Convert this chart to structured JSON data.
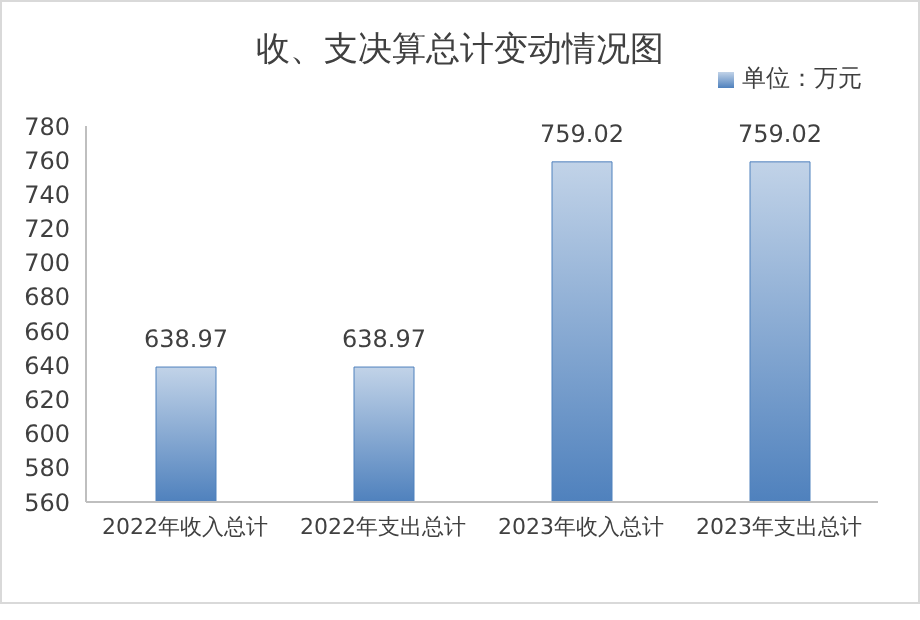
{
  "chart_data": {
    "type": "bar",
    "title": "收、支决算总计变动情况图",
    "categories": [
      "2022年收入总计",
      "2022年支出总计",
      "2023年收入总计",
      "2023年支出总计"
    ],
    "series": [
      {
        "name": "单位：万元",
        "color": "#4f81bd",
        "values": [
          638.97,
          638.97,
          759.02,
          759.02
        ]
      }
    ],
    "ylim": [
      560,
      780
    ],
    "yticks": [
      560,
      580,
      600,
      620,
      640,
      660,
      680,
      700,
      720,
      740,
      760,
      780
    ],
    "grid": false,
    "legend": "top right",
    "data_labels": true
  }
}
